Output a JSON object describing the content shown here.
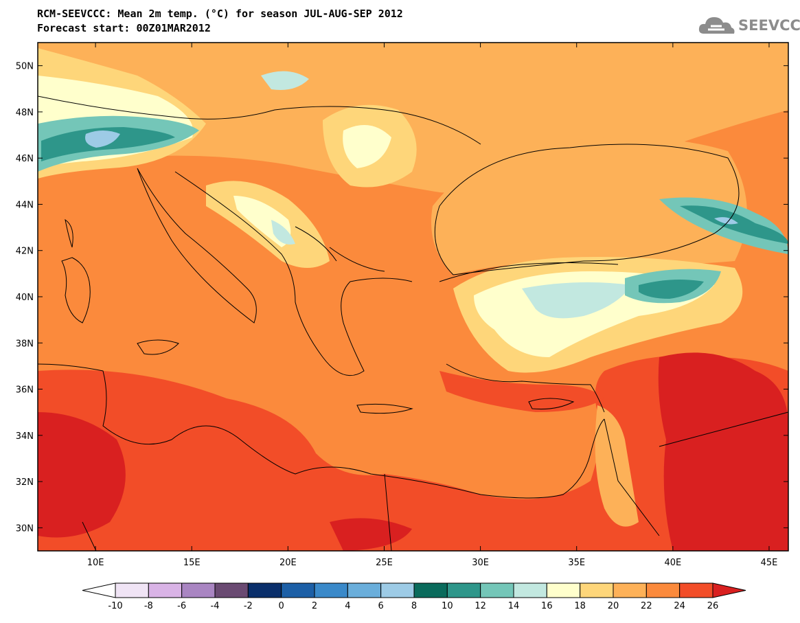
{
  "title_line1": "RCM-SEEVCCC: Mean 2m temp. (°C) for season JUL-AUG-SEP 2012",
  "title_line2": "Forecast start: 00Z01MAR2012",
  "logo_text": "SEEVCCC",
  "logo_icon": "cloud-icon",
  "map": {
    "lon_range": [
      7,
      46
    ],
    "lat_range": [
      29,
      51
    ],
    "lat_labels": [
      {
        "lat": 50,
        "text": "50N"
      },
      {
        "lat": 48,
        "text": "48N"
      },
      {
        "lat": 46,
        "text": "46N"
      },
      {
        "lat": 44,
        "text": "44N"
      },
      {
        "lat": 42,
        "text": "42N"
      },
      {
        "lat": 40,
        "text": "40N"
      },
      {
        "lat": 38,
        "text": "38N"
      },
      {
        "lat": 36,
        "text": "36N"
      },
      {
        "lat": 34,
        "text": "34N"
      },
      {
        "lat": 32,
        "text": "32N"
      },
      {
        "lat": 30,
        "text": "30N"
      }
    ],
    "lon_labels": [
      {
        "lon": 10,
        "text": "10E"
      },
      {
        "lon": 15,
        "text": "15E"
      },
      {
        "lon": 20,
        "text": "20E"
      },
      {
        "lon": 25,
        "text": "25E"
      },
      {
        "lon": 30,
        "text": "30E"
      },
      {
        "lon": 35,
        "text": "35E"
      },
      {
        "lon": 40,
        "text": "40E"
      },
      {
        "lon": 45,
        "text": "45E"
      }
    ]
  },
  "colorbar": {
    "colors": [
      "#ffffff",
      "#f0e4f5",
      "#d9b3e6",
      "#a985c2",
      "#6a4a72",
      "#0a2f6b",
      "#1c5fa6",
      "#3a89c9",
      "#6aaedb",
      "#9dcbe6",
      "#0a6b5c",
      "#2e968a",
      "#74c6b8",
      "#c2e8e0",
      "#ffffcc",
      "#fed67a",
      "#fdb158",
      "#fb8a3c",
      "#f24d28",
      "#d92020"
    ],
    "labels": [
      "-10",
      "-8",
      "-6",
      "-4",
      "-2",
      "0",
      "2",
      "4",
      "6",
      "8",
      "10",
      "12",
      "14",
      "16",
      "18",
      "20",
      "22",
      "24",
      "26"
    ]
  }
}
